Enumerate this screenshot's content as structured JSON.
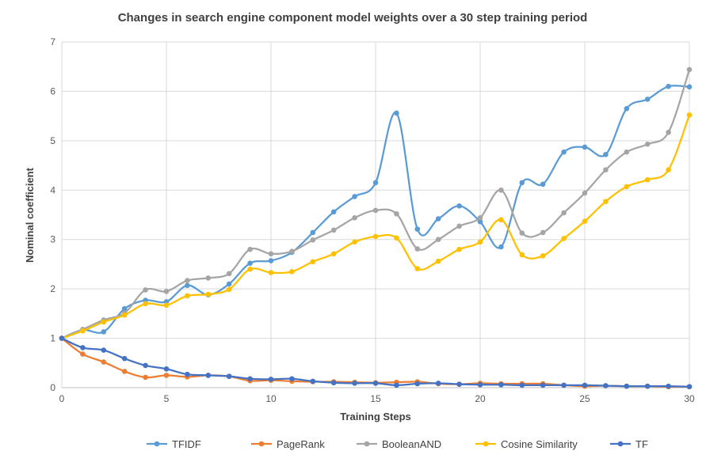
{
  "chart_data": {
    "type": "line",
    "title": "Changes in search engine component model weights over a 30 step training period",
    "xlabel": "Training Steps",
    "ylabel": "Nominal coefficient",
    "xlim": [
      0,
      30
    ],
    "ylim": [
      0,
      7
    ],
    "xticks": [
      0,
      5,
      10,
      15,
      20,
      25,
      30
    ],
    "yticks": [
      0,
      1,
      2,
      3,
      4,
      5,
      6,
      7
    ],
    "grid": true,
    "smooth": true,
    "legend_position": "bottom",
    "x": [
      0,
      1,
      2,
      3,
      4,
      5,
      6,
      7,
      8,
      9,
      10,
      11,
      12,
      13,
      14,
      15,
      16,
      17,
      18,
      19,
      20,
      21,
      22,
      23,
      24,
      25,
      26,
      27,
      28,
      29,
      30
    ],
    "series": [
      {
        "name": "TFIDF",
        "color": "#5B9BD5",
        "values": [
          1.0,
          1.17,
          1.13,
          1.6,
          1.77,
          1.74,
          2.07,
          1.88,
          2.1,
          2.52,
          2.57,
          2.74,
          3.14,
          3.56,
          3.87,
          4.15,
          5.56,
          3.21,
          3.42,
          3.68,
          3.36,
          2.85,
          4.15,
          4.12,
          4.77,
          4.87,
          4.72,
          5.65,
          5.84,
          6.1,
          6.09
        ]
      },
      {
        "name": "PageRank",
        "color": "#ED7D31",
        "values": [
          1.0,
          0.68,
          0.52,
          0.33,
          0.21,
          0.25,
          0.22,
          0.25,
          0.23,
          0.14,
          0.15,
          0.13,
          0.12,
          0.12,
          0.11,
          0.1,
          0.11,
          0.12,
          0.08,
          0.07,
          0.09,
          0.08,
          0.08,
          0.08,
          0.05,
          0.03,
          0.04,
          0.03,
          0.03,
          0.02,
          0.02
        ]
      },
      {
        "name": "BooleanAND",
        "color": "#A5A5A5",
        "values": [
          1.0,
          1.18,
          1.37,
          1.51,
          1.98,
          1.95,
          2.17,
          2.22,
          2.31,
          2.8,
          2.71,
          2.76,
          2.99,
          3.19,
          3.44,
          3.59,
          3.52,
          2.81,
          3.0,
          3.27,
          3.44,
          4.0,
          3.13,
          3.14,
          3.54,
          3.94,
          4.41,
          4.77,
          4.93,
          5.17,
          6.44
        ]
      },
      {
        "name": "Cosine Similarity",
        "color": "#FFC000",
        "values": [
          1.0,
          1.15,
          1.33,
          1.47,
          1.7,
          1.67,
          1.86,
          1.89,
          1.99,
          2.4,
          2.33,
          2.35,
          2.55,
          2.71,
          2.95,
          3.06,
          3.03,
          2.41,
          2.56,
          2.8,
          2.95,
          3.4,
          2.69,
          2.67,
          3.02,
          3.37,
          3.77,
          4.07,
          4.21,
          4.41,
          5.52
        ]
      },
      {
        "name": "TF",
        "color": "#4472C4",
        "values": [
          1.0,
          0.81,
          0.76,
          0.59,
          0.45,
          0.38,
          0.27,
          0.25,
          0.23,
          0.18,
          0.17,
          0.18,
          0.13,
          0.1,
          0.09,
          0.09,
          0.05,
          0.08,
          0.09,
          0.07,
          0.06,
          0.06,
          0.05,
          0.05,
          0.05,
          0.05,
          0.04,
          0.03,
          0.03,
          0.03,
          0.02
        ]
      }
    ]
  }
}
